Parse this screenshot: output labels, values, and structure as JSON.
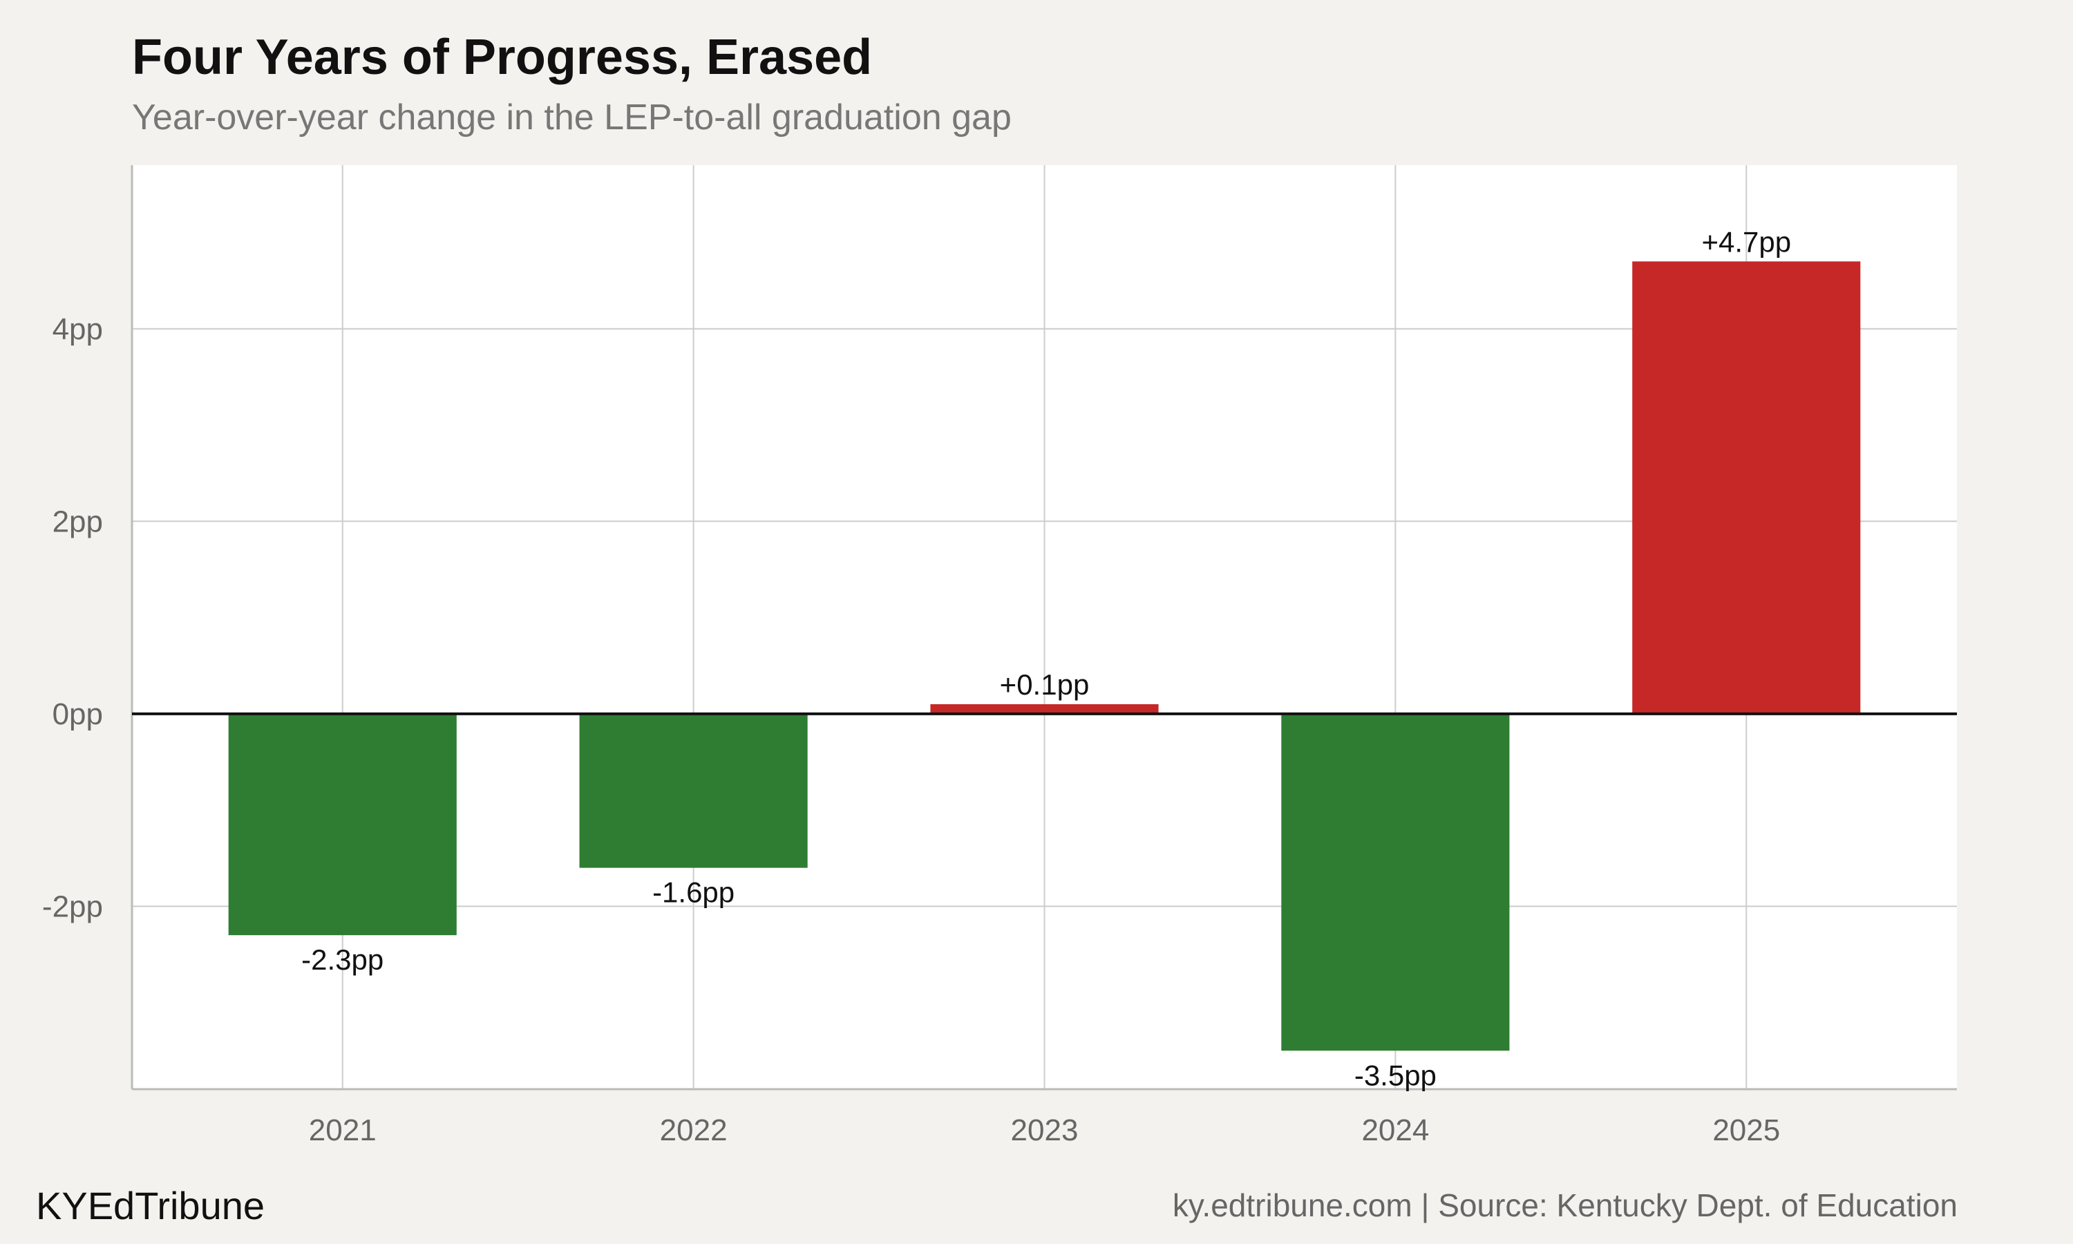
{
  "header": {
    "title": "Four Years of Progress, Erased",
    "subtitle": "Year-over-year change in the LEP-to-all graduation gap"
  },
  "footer": {
    "brand": "KYEdTribune",
    "source": "ky.edtribune.com | Source: Kentucky Dept. of Education"
  },
  "colors": {
    "background": "#f4f2ee",
    "plot_background": "#ffffff",
    "decrease": "#2e7d32",
    "increase": "#c62828",
    "zero_line": "#111111",
    "grid": "#cccccc"
  },
  "chart_data": {
    "type": "bar",
    "title": "Four Years of Progress, Erased",
    "subtitle": "Year-over-year change in the LEP-to-all graduation gap",
    "xlabel": "",
    "ylabel": "",
    "categories": [
      "2021",
      "2022",
      "2023",
      "2024",
      "2025"
    ],
    "values": [
      -2.3,
      -1.6,
      0.1,
      -3.5,
      4.7
    ],
    "data_labels": [
      "-2.3pp",
      "-1.6pp",
      "+0.1pp",
      "-3.5pp",
      "+4.7pp"
    ],
    "ylim": [
      -3.9,
      5.7
    ],
    "yticks": [
      -2,
      0,
      2,
      4
    ],
    "ytick_labels": [
      "-2pp",
      "0pp",
      "2pp",
      "4pp"
    ],
    "grid": true,
    "legend": "none"
  }
}
